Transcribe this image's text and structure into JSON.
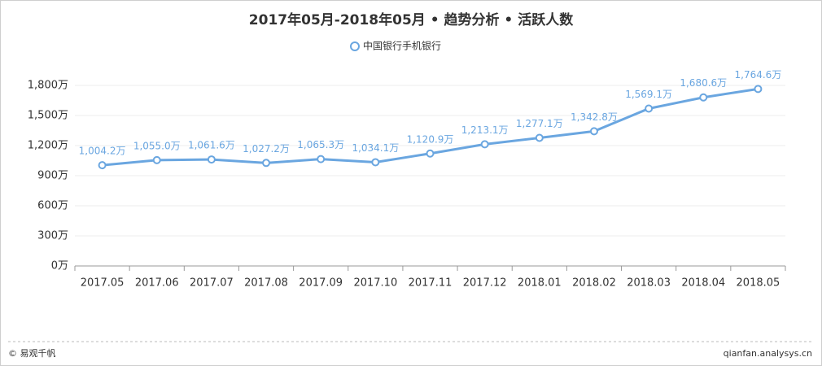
{
  "chart_data": {
    "type": "line",
    "title": "2017年05月-2018年05月 • 趋势分析 • 活跃人数",
    "categories": [
      "2017.05",
      "2017.06",
      "2017.07",
      "2017.08",
      "2017.09",
      "2017.10",
      "2017.11",
      "2017.12",
      "2018.01",
      "2018.02",
      "2018.03",
      "2018.04",
      "2018.05"
    ],
    "series": [
      {
        "name": "中国银行手机银行",
        "color": "#6aa6e0",
        "values": [
          1004.2,
          1055.0,
          1061.6,
          1027.2,
          1065.3,
          1034.1,
          1120.9,
          1213.1,
          1277.1,
          1342.8,
          1569.1,
          1680.6,
          1764.6
        ],
        "value_labels": [
          "1,004.2万",
          "1,055.0万",
          "1,061.6万",
          "1,027.2万",
          "1,065.3万",
          "1,034.1万",
          "1,120.9万",
          "1,213.1万",
          "1,277.1万",
          "1,342.8万",
          "1,569.1万",
          "1,680.6万",
          "1,764.6万"
        ]
      }
    ],
    "ylim": [
      0,
      1800
    ],
    "yticks": [
      {
        "value": 0,
        "label": "0万"
      },
      {
        "value": 300,
        "label": "300万"
      },
      {
        "value": 600,
        "label": "600万"
      },
      {
        "value": 900,
        "label": "900万"
      },
      {
        "value": 1200,
        "label": "1,200万"
      },
      {
        "value": 1500,
        "label": "1,500万"
      },
      {
        "value": 1800,
        "label": "1,800万"
      }
    ],
    "grid": true,
    "footer_left": "© 易观千帆",
    "footer_right": "qianfan.analysys.cn"
  }
}
